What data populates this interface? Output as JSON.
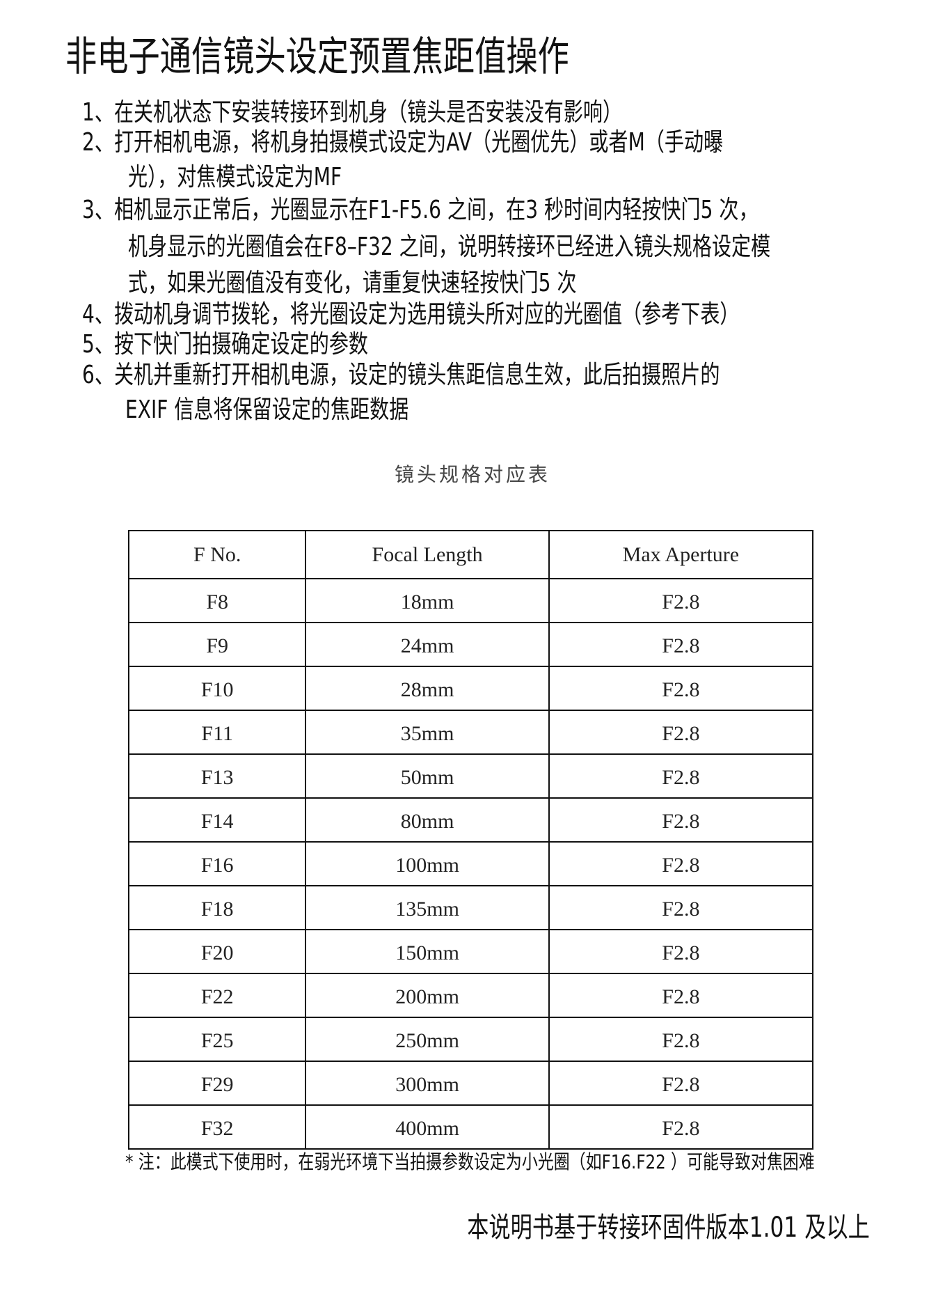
{
  "title": "非电子通信镜头设定预置焦距值操作",
  "steps": [
    "1、在关机状态下安装转接环到机身（镜头是否安装没有影响）",
    "2、打开相机电源，将机身拍摄模式设定为AV（光圈优先）或者M（手动曝",
    "光），对焦模式设定为MF",
    "3、相机显示正常后，光圈显示在F1-F5.6 之间，在3 秒时间内轻按快门5 次，",
    "机身显示的光圈值会在F8–F32 之间，说明转接环已经进入镜头规格设定模",
    "式，如果光圈值没有变化，请重复快速轻按快门5 次",
    "4、拨动机身调节拨轮，将光圈设定为选用镜头所对应的光圈值（参考下表）",
    "5、按下快门拍摄确定设定的参数",
    "6、关机并重新打开相机电源，设定的镜头焦距信息生效，此后拍摄照片的",
    "EXIF 信息将保留设定的焦距数据"
  ],
  "table": {
    "caption": "镜头规格对应表",
    "headers": [
      "F No.",
      "Focal Length",
      "Max Aperture"
    ],
    "rows": [
      [
        "F8",
        "18mm",
        "F2.8"
      ],
      [
        "F9",
        "24mm",
        "F2.8"
      ],
      [
        "F10",
        "28mm",
        "F2.8"
      ],
      [
        "F11",
        "35mm",
        "F2.8"
      ],
      [
        "F13",
        "50mm",
        "F2.8"
      ],
      [
        "F14",
        "80mm",
        "F2.8"
      ],
      [
        "F16",
        "100mm",
        "F2.8"
      ],
      [
        "F18",
        "135mm",
        "F2.8"
      ],
      [
        "F20",
        "150mm",
        "F2.8"
      ],
      [
        "F22",
        "200mm",
        "F2.8"
      ],
      [
        "F25",
        "250mm",
        "F2.8"
      ],
      [
        "F29",
        "300mm",
        "F2.8"
      ],
      [
        "F32",
        "400mm",
        "F2.8"
      ]
    ]
  },
  "note": "* 注：此模式下使用时，在弱光环境下当拍摄参数设定为小光圈（如F16.F22 ）可能导致对焦困难",
  "footer": "本说明书基于转接环固件版本1.01 及以上"
}
